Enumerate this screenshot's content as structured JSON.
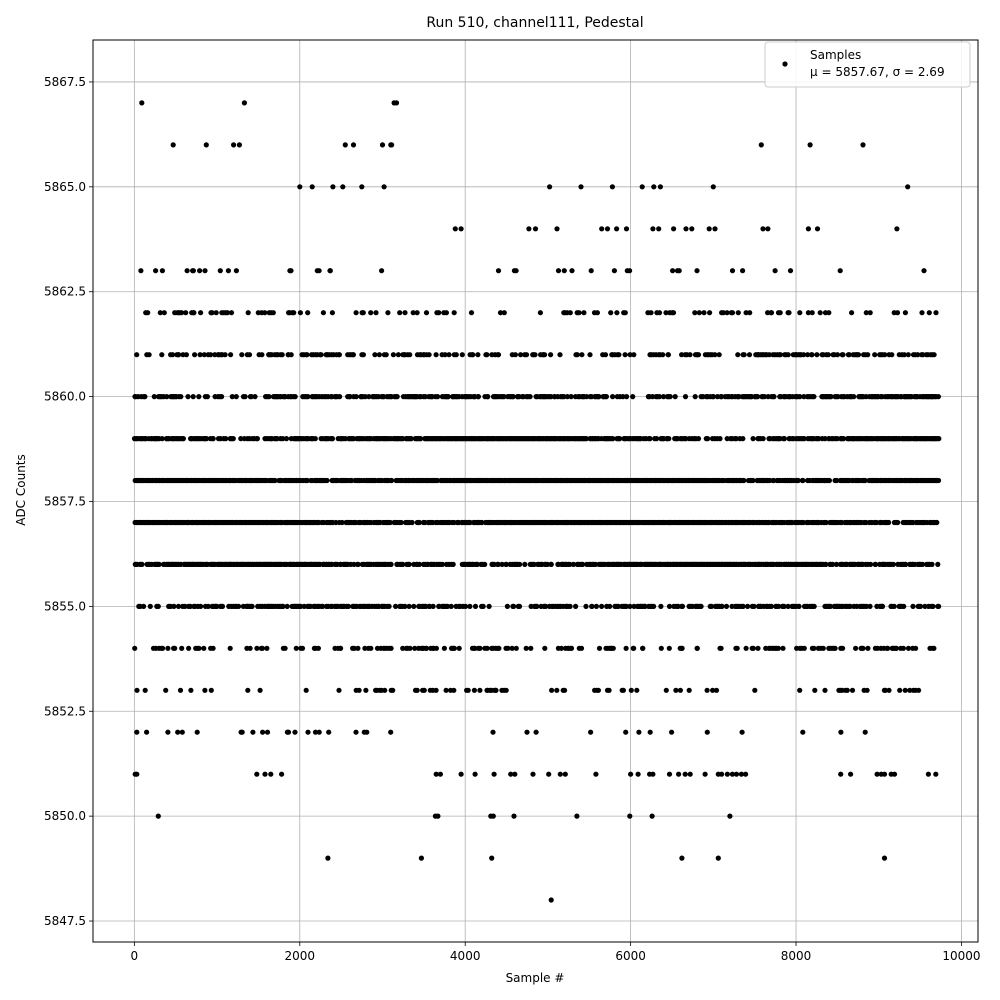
{
  "chart_data": {
    "type": "scatter",
    "title": "Run 510, channel111, Pedestal",
    "xlabel": "Sample #",
    "ylabel": "ADC Counts",
    "xlim": [
      -500,
      10200
    ],
    "ylim": [
      5847.0,
      5868.5
    ],
    "xticks": [
      0,
      2000,
      4000,
      6000,
      8000,
      10000
    ],
    "xtick_labels": [
      "0",
      "2000",
      "4000",
      "6000",
      "8000",
      "10000"
    ],
    "yticks": [
      5847.5,
      5850.0,
      5852.5,
      5855.0,
      5857.5,
      5860.0,
      5862.5,
      5865.0,
      5867.5
    ],
    "ytick_labels": [
      "5847.5",
      "5850.0",
      "5852.5",
      "5855.0",
      "5857.5",
      "5860.0",
      "5862.5",
      "5865.0",
      "5867.5"
    ],
    "grid": true,
    "legend_position": "top-right",
    "marker_color": "#000000",
    "series": [
      {
        "name": "Samples",
        "stats_label": "μ = 5857.67, σ = 2.69",
        "n_samples": 9720,
        "x_range": [
          0,
          9720
        ],
        "level_density": [
          {
            "y": 5867,
            "density": 0.0005
          },
          {
            "y": 5866,
            "density": 0.001
          },
          {
            "y": 5865,
            "density": 0.004
          },
          {
            "y": 5864,
            "density": 0.009
          },
          {
            "y": 5863,
            "density": 0.03
          },
          {
            "y": 5862,
            "density": 0.08
          },
          {
            "y": 5861,
            "density": 0.17
          },
          {
            "y": 5860,
            "density": 0.3
          },
          {
            "y": 5859,
            "density": 0.45
          },
          {
            "y": 5858,
            "density": 0.6
          },
          {
            "y": 5857,
            "density": 0.55
          },
          {
            "y": 5856,
            "density": 0.42
          },
          {
            "y": 5855,
            "density": 0.25
          },
          {
            "y": 5854,
            "density": 0.15
          },
          {
            "y": 5853,
            "density": 0.06
          },
          {
            "y": 5852,
            "density": 0.025
          },
          {
            "y": 5851,
            "density": 0.008
          },
          {
            "y": 5850,
            "density": 0.003
          },
          {
            "y": 5849,
            "density": 0.001
          }
        ],
        "sparse_points": [
          [
            90,
            5867
          ],
          [
            1330,
            5867
          ],
          [
            3140,
            5867
          ],
          [
            3170,
            5867
          ],
          [
            470,
            5866
          ],
          [
            870,
            5866
          ],
          [
            1200,
            5866
          ],
          [
            1270,
            5866
          ],
          [
            2550,
            5866
          ],
          [
            2650,
            5866
          ],
          [
            3000,
            5866
          ],
          [
            3100,
            5866
          ],
          [
            3110,
            5866
          ],
          [
            7580,
            5866
          ],
          [
            8170,
            5866
          ],
          [
            8810,
            5866
          ],
          [
            5020,
            5865
          ],
          [
            5400,
            5865
          ],
          [
            5780,
            5865
          ],
          [
            6140,
            5865
          ],
          [
            6280,
            5865
          ],
          [
            6360,
            5865
          ],
          [
            7000,
            5865
          ],
          [
            9350,
            5865
          ],
          [
            2000,
            5865
          ],
          [
            2150,
            5865
          ],
          [
            2400,
            5865
          ],
          [
            2520,
            5865
          ],
          [
            2750,
            5865
          ],
          [
            3020,
            5865
          ],
          [
            3880,
            5864
          ],
          [
            3950,
            5864
          ],
          [
            4770,
            5864
          ],
          [
            4850,
            5864
          ],
          [
            5110,
            5864
          ],
          [
            5650,
            5864
          ],
          [
            5720,
            5864
          ],
          [
            5830,
            5864
          ],
          [
            5950,
            5864
          ],
          [
            6270,
            5864
          ],
          [
            6340,
            5864
          ],
          [
            6520,
            5864
          ],
          [
            6670,
            5864
          ],
          [
            6740,
            5864
          ],
          [
            6950,
            5864
          ],
          [
            7020,
            5864
          ],
          [
            7600,
            5864
          ],
          [
            7660,
            5864
          ],
          [
            8150,
            5864
          ],
          [
            8260,
            5864
          ],
          [
            9220,
            5864
          ],
          [
            1290,
            5852
          ],
          [
            1550,
            5852
          ],
          [
            1610,
            5852
          ],
          [
            1850,
            5852
          ],
          [
            2100,
            5852
          ],
          [
            2190,
            5852
          ],
          [
            2350,
            5852
          ],
          [
            2780,
            5852
          ],
          [
            2810,
            5852
          ],
          [
            580,
            5852
          ],
          [
            760,
            5852
          ],
          [
            30,
            5852
          ],
          [
            10,
            5851
          ],
          [
            30,
            5851
          ],
          [
            1480,
            5851
          ],
          [
            1580,
            5851
          ],
          [
            1650,
            5851
          ],
          [
            1780,
            5851
          ],
          [
            3650,
            5851
          ],
          [
            3700,
            5851
          ],
          [
            3950,
            5851
          ],
          [
            4120,
            5851
          ],
          [
            4350,
            5851
          ],
          [
            4550,
            5851
          ],
          [
            4600,
            5851
          ],
          [
            4820,
            5851
          ],
          [
            5010,
            5851
          ],
          [
            5150,
            5851
          ],
          [
            5210,
            5851
          ],
          [
            5580,
            5851
          ],
          [
            6000,
            5851
          ],
          [
            6090,
            5851
          ],
          [
            6230,
            5851
          ],
          [
            6270,
            5851
          ],
          [
            6470,
            5851
          ],
          [
            6580,
            5851
          ],
          [
            6660,
            5851
          ],
          [
            6720,
            5851
          ],
          [
            6900,
            5851
          ],
          [
            7060,
            5851
          ],
          [
            7100,
            5851
          ],
          [
            7170,
            5851
          ],
          [
            7230,
            5851
          ],
          [
            7280,
            5851
          ],
          [
            7340,
            5851
          ],
          [
            7390,
            5851
          ],
          [
            8540,
            5851
          ],
          [
            8660,
            5851
          ],
          [
            8980,
            5851
          ],
          [
            9030,
            5851
          ],
          [
            9070,
            5851
          ],
          [
            9150,
            5851
          ],
          [
            9190,
            5851
          ],
          [
            9600,
            5851
          ],
          [
            9690,
            5851
          ],
          [
            290,
            5850
          ],
          [
            3640,
            5850
          ],
          [
            3670,
            5850
          ],
          [
            4310,
            5850
          ],
          [
            4340,
            5850
          ],
          [
            4590,
            5850
          ],
          [
            5350,
            5850
          ],
          [
            5990,
            5850
          ],
          [
            6260,
            5850
          ],
          [
            7200,
            5850
          ],
          [
            2340,
            5849
          ],
          [
            3470,
            5849
          ],
          [
            4320,
            5849
          ],
          [
            6620,
            5849
          ],
          [
            7060,
            5849
          ],
          [
            9070,
            5849
          ],
          [
            5040,
            5848
          ]
        ]
      }
    ]
  }
}
